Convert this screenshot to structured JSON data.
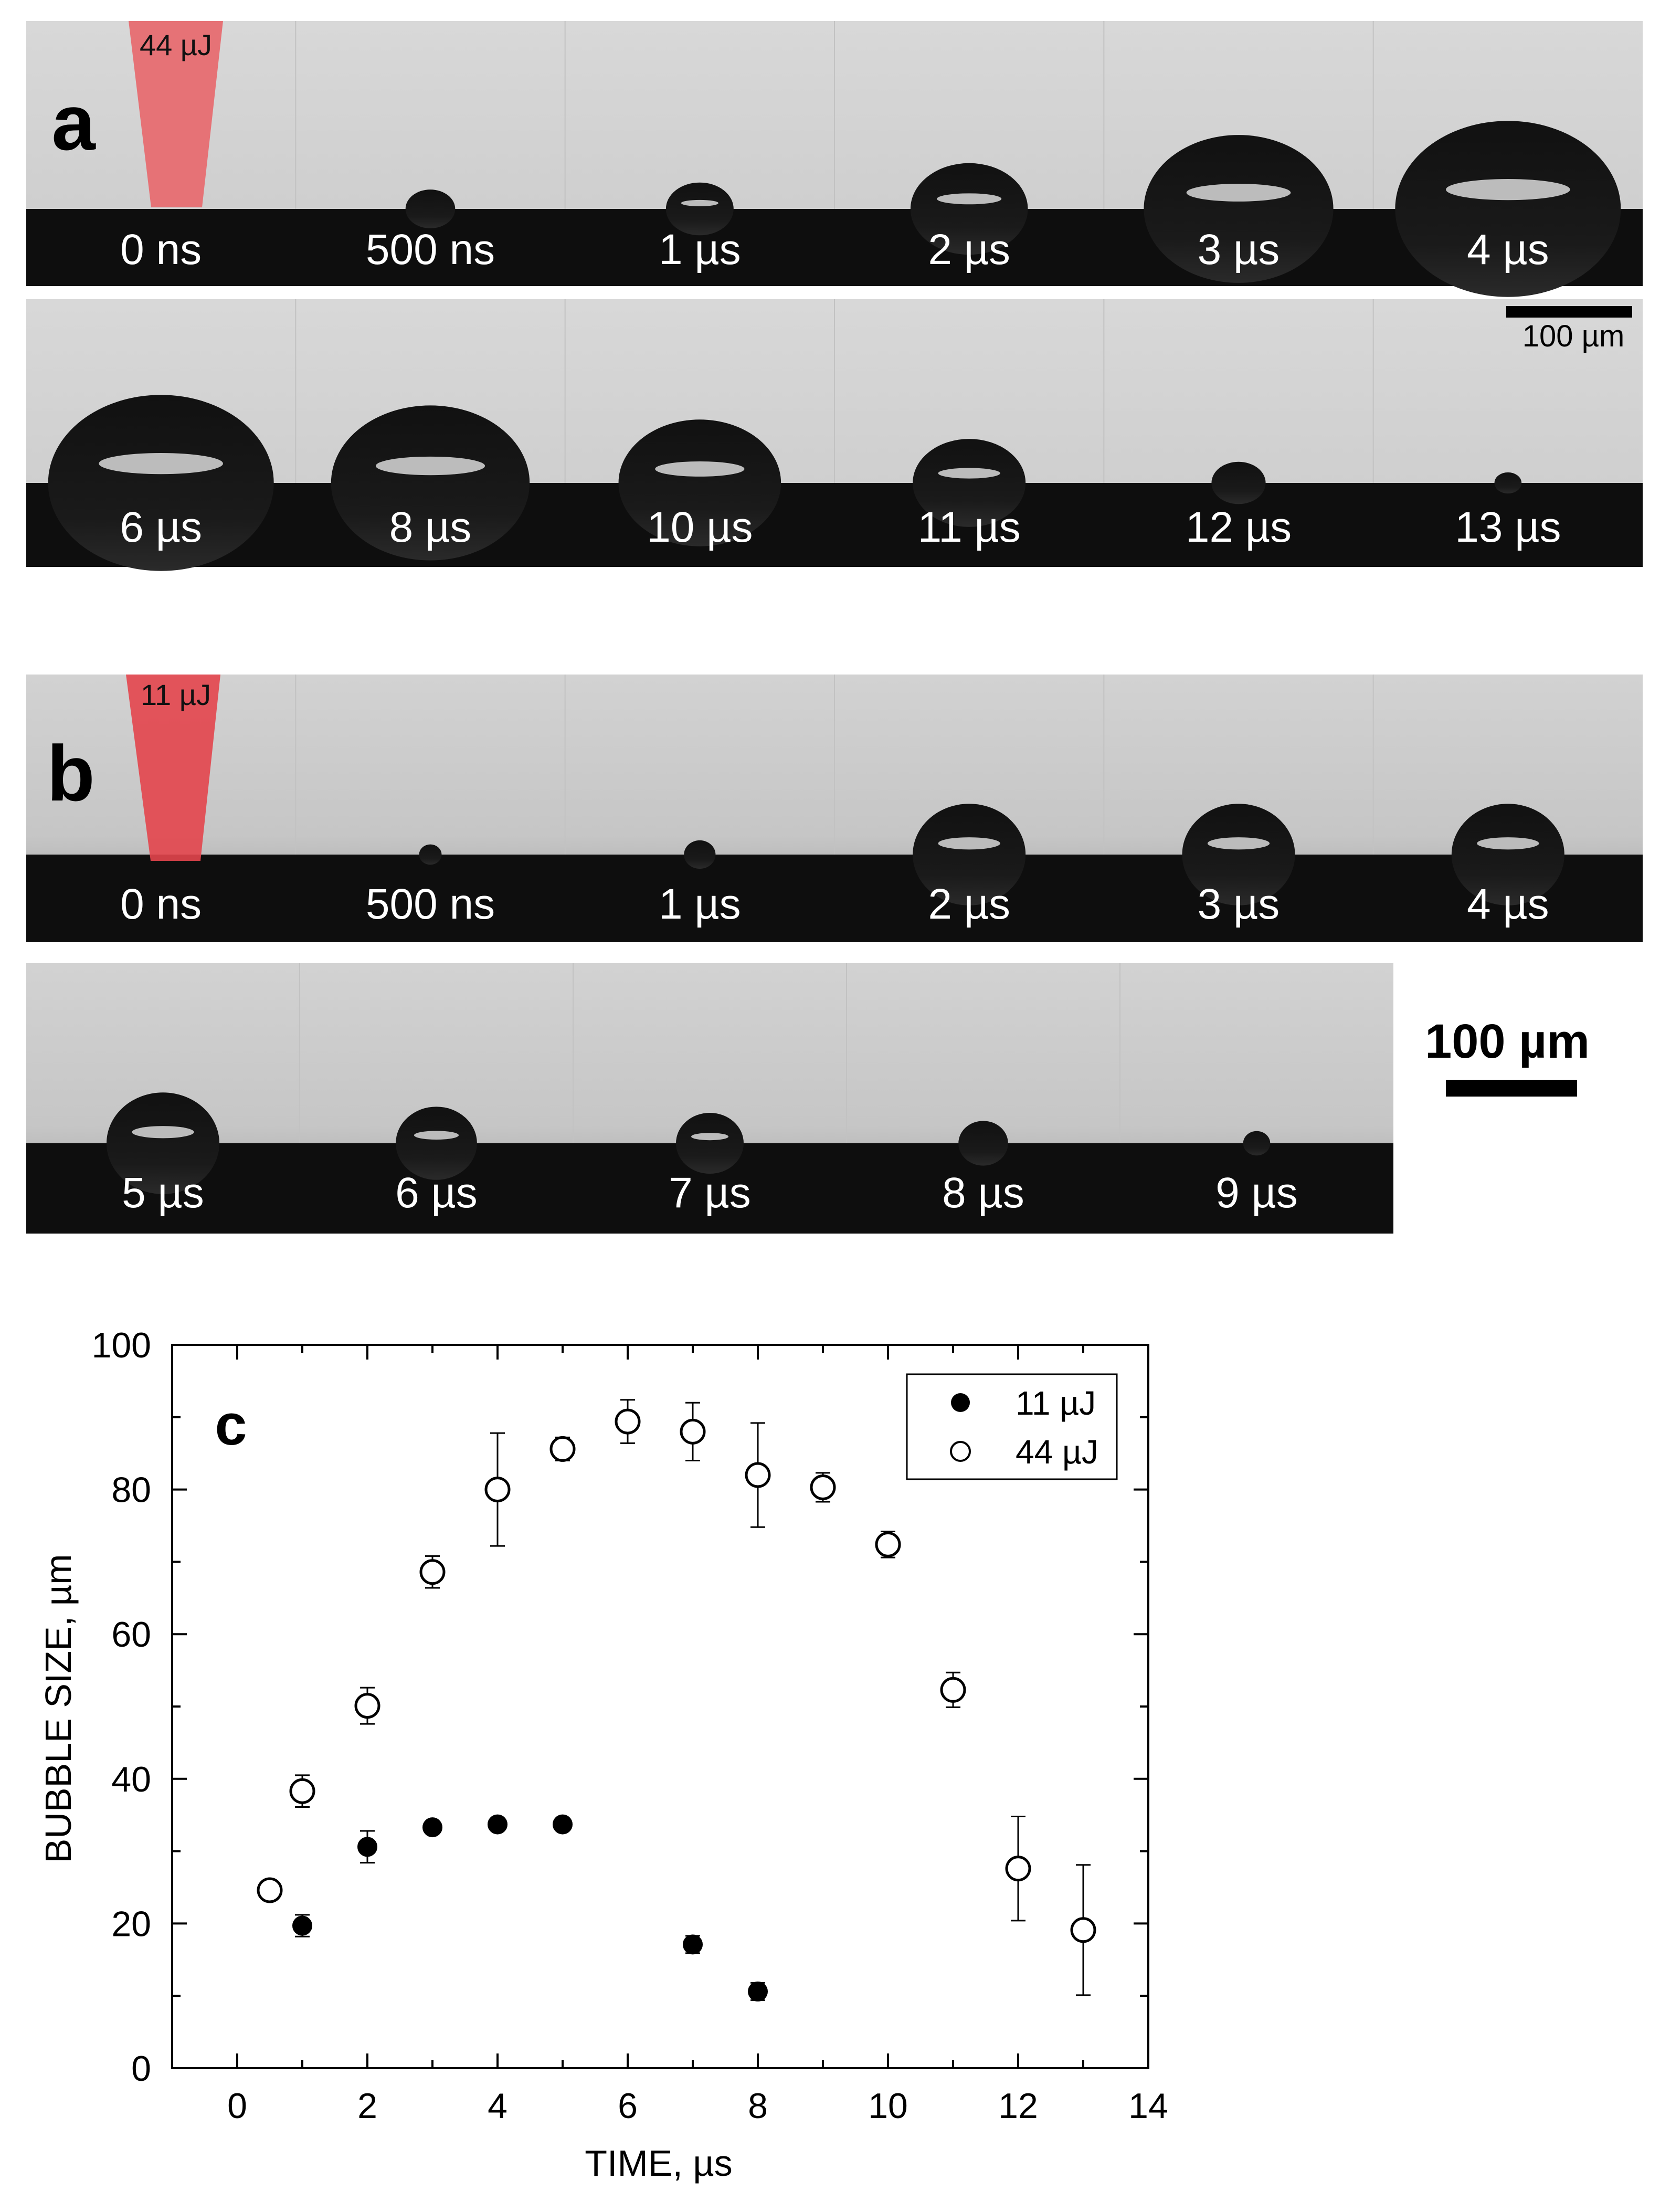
{
  "panel_a": {
    "letter": "a",
    "energy_label": "44 µJ",
    "scale_bar_label": "100 µm",
    "row1": [
      {
        "label": "0 ns",
        "bubble": 0
      },
      {
        "label": "500 ns",
        "bubble": 0.22
      },
      {
        "label": "1 µs",
        "bubble": 0.3
      },
      {
        "label": "2 µs",
        "bubble": 0.52
      },
      {
        "label": "3 µs",
        "bubble": 0.84
      },
      {
        "label": "4 µs",
        "bubble": 1.0
      }
    ],
    "row2": [
      {
        "label": "6 µs",
        "bubble": 1.0
      },
      {
        "label": "8 µs",
        "bubble": 0.88
      },
      {
        "label": "10 µs",
        "bubble": 0.72
      },
      {
        "label": "11 µs",
        "bubble": 0.5
      },
      {
        "label": "12 µs",
        "bubble": 0.24
      },
      {
        "label": "13 µs",
        "bubble": 0.12
      }
    ]
  },
  "panel_b": {
    "letter": "b",
    "energy_label": "11 µJ",
    "scale_bar_label": "100 µm",
    "row1": [
      {
        "label": "0 ns",
        "bubble": 0
      },
      {
        "label": "500 ns",
        "bubble": 0.1
      },
      {
        "label": "1 µs",
        "bubble": 0.14
      },
      {
        "label": "2 µs",
        "bubble": 0.5
      },
      {
        "label": "3 µs",
        "bubble": 0.5
      },
      {
        "label": "4 µs",
        "bubble": 0.5
      }
    ],
    "row2": [
      {
        "label": "5 µs",
        "bubble": 0.5
      },
      {
        "label": "6 µs",
        "bubble": 0.36
      },
      {
        "label": "7 µs",
        "bubble": 0.3
      },
      {
        "label": "8 µs",
        "bubble": 0.22
      },
      {
        "label": "9 µs",
        "bubble": 0.12
      }
    ]
  },
  "chart_data": {
    "type": "scatter",
    "panel_letter": "c",
    "xlabel": "TIME, µs",
    "ylabel": "BUBBLE SIZE, µm",
    "xlim": [
      -1,
      14
    ],
    "ylim": [
      0,
      100
    ],
    "x_ticks": [
      0,
      2,
      4,
      6,
      8,
      10,
      12,
      14
    ],
    "y_ticks": [
      0,
      20,
      40,
      60,
      80,
      100
    ],
    "legend_position": "top-right",
    "series": [
      {
        "name": "11 µJ",
        "marker": "filled-circle",
        "points": [
          {
            "x": 1,
            "y": 19.7,
            "err": 1.5
          },
          {
            "x": 2,
            "y": 30.6,
            "err": 2.2
          },
          {
            "x": 3,
            "y": 33.3,
            "err": 0
          },
          {
            "x": 4,
            "y": 33.7,
            "err": 0
          },
          {
            "x": 5,
            "y": 33.7,
            "err": 0
          },
          {
            "x": 7,
            "y": 17.1,
            "err": 1.2
          },
          {
            "x": 8,
            "y": 10.6,
            "err": 1.2
          }
        ]
      },
      {
        "name": "44 µJ",
        "marker": "open-circle",
        "points": [
          {
            "x": 0.5,
            "y": 24.6,
            "err": 1.2
          },
          {
            "x": 1,
            "y": 38.3,
            "err": 2.2
          },
          {
            "x": 2,
            "y": 50.1,
            "err": 2.5
          },
          {
            "x": 3,
            "y": 68.6,
            "err": 2.2
          },
          {
            "x": 4,
            "y": 80.0,
            "err": 7.8
          },
          {
            "x": 5,
            "y": 85.6,
            "err": 1.6
          },
          {
            "x": 6,
            "y": 89.4,
            "err": 3.0
          },
          {
            "x": 7,
            "y": 88.0,
            "err": 4.0
          },
          {
            "x": 8,
            "y": 82.0,
            "err": 7.2
          },
          {
            "x": 9,
            "y": 80.3,
            "err": 2.0
          },
          {
            "x": 10,
            "y": 72.4,
            "err": 1.8
          },
          {
            "x": 11,
            "y": 52.3,
            "err": 2.4
          },
          {
            "x": 12,
            "y": 27.6,
            "err": 7.2
          },
          {
            "x": 13,
            "y": 19.1,
            "err": 9.0
          }
        ]
      }
    ]
  }
}
